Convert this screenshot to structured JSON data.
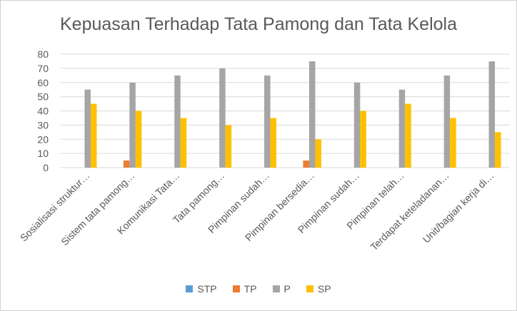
{
  "chart_data": {
    "type": "bar",
    "title": "Kepuasan Terhadap Tata Pamong dan Tata Kelola",
    "categories": [
      "Sosialisasi struktur…",
      "Sistem tata pamong…",
      "Komunikasi Tata…",
      "Tata pamong…",
      "Pimpinan sudah…",
      "Pimpinan bersedia…",
      "Pimpinan sudah…",
      "Pimpinan telah…",
      "Terdapat keteladanan…",
      "Unit/bagian kerja di…"
    ],
    "series": [
      {
        "name": "STP",
        "color": "#5B9BD5",
        "values": [
          0,
          0,
          0,
          0,
          0,
          0,
          0,
          0,
          0,
          0
        ]
      },
      {
        "name": "TP",
        "color": "#ED7D31",
        "values": [
          0,
          5,
          0,
          0,
          0,
          5,
          0,
          0,
          0,
          0
        ]
      },
      {
        "name": "P",
        "color": "#A5A5A5",
        "values": [
          55,
          60,
          65,
          70,
          65,
          75,
          60,
          55,
          65,
          75
        ]
      },
      {
        "name": "SP",
        "color": "#FFC000",
        "values": [
          45,
          40,
          35,
          30,
          35,
          20,
          40,
          45,
          35,
          25
        ]
      }
    ],
    "yticks": [
      0,
      10,
      20,
      30,
      40,
      50,
      60,
      70,
      80
    ],
    "ylim": [
      0,
      80
    ],
    "grid": true,
    "legend_position": "bottom"
  }
}
